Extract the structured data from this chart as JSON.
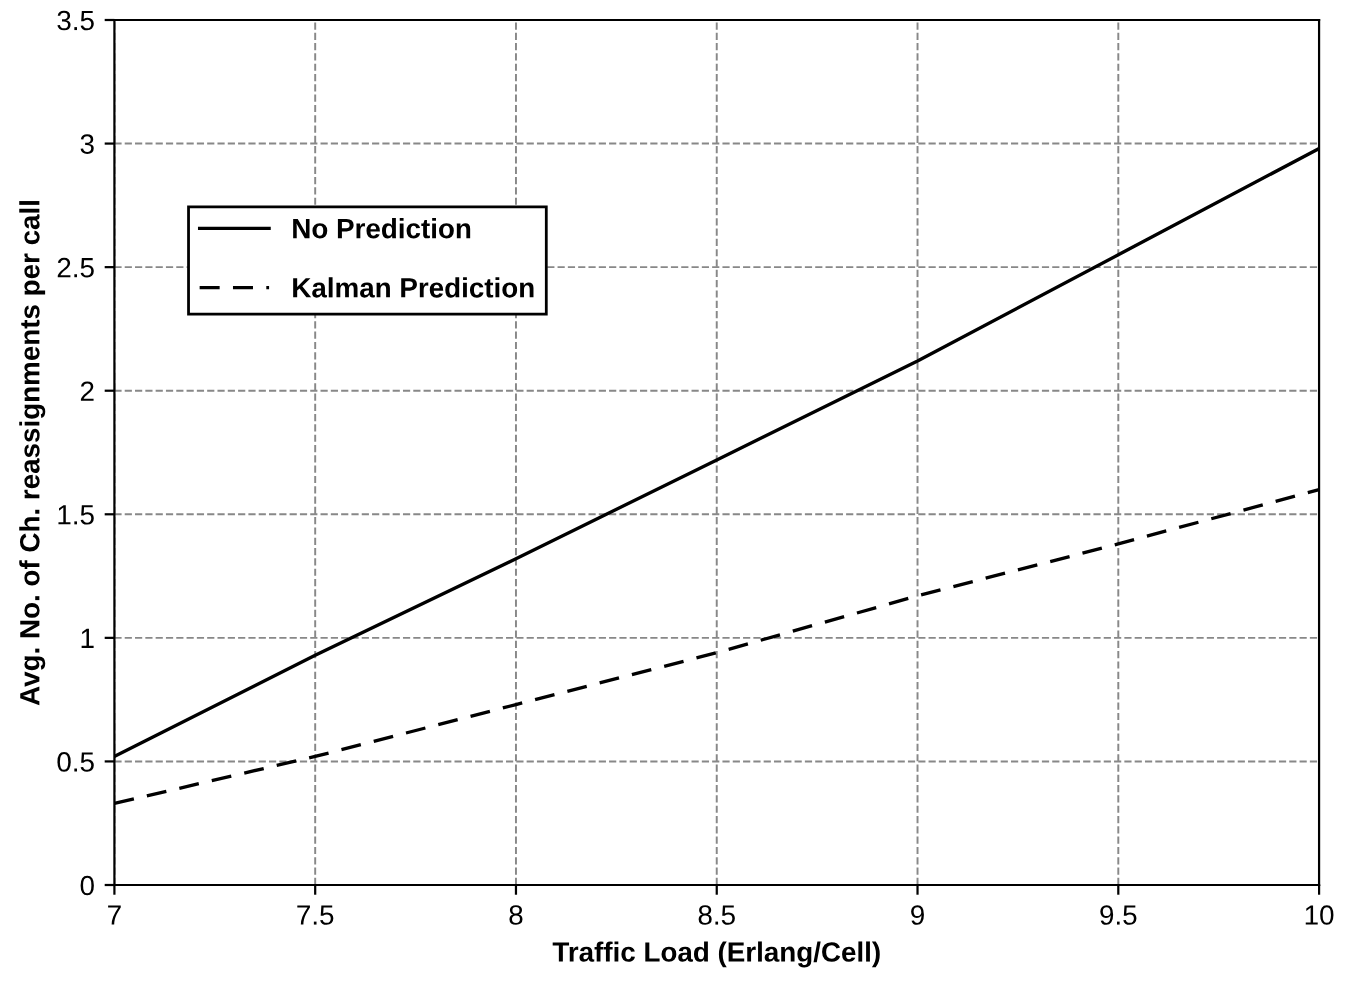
{
  "chart_data": {
    "type": "line",
    "xlabel": "Traffic Load (Erlang/Cell)",
    "ylabel": "Avg. No. of Ch. reassignments per call",
    "x": [
      7,
      7.5,
      8,
      8.5,
      9,
      9.5,
      10
    ],
    "series": [
      {
        "name": "No Prediction",
        "color": "#000000",
        "line_style": "solid",
        "values": [
          0.52,
          0.93,
          1.32,
          1.72,
          2.12,
          2.55,
          2.98
        ]
      },
      {
        "name": "Kalman Prediction",
        "color": "#000000",
        "line_style": "dashed",
        "values": [
          0.33,
          0.52,
          0.73,
          0.94,
          1.17,
          1.38,
          1.6
        ]
      }
    ],
    "xlim": [
      7,
      10
    ],
    "xticks": [
      7,
      7.5,
      8,
      8.5,
      9,
      9.5,
      10
    ],
    "ylim": [
      0,
      3.5
    ],
    "yticks": [
      0,
      0.5,
      1,
      1.5,
      2,
      2.5,
      3,
      3.5
    ],
    "grid": true,
    "legend": "top left",
    "marker": "none"
  }
}
